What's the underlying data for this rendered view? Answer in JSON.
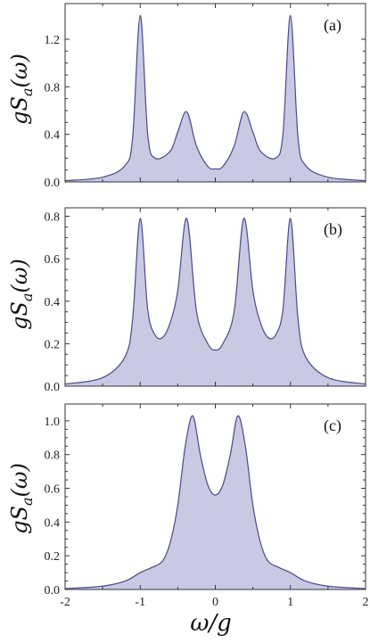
{
  "chart_data": [
    {
      "type": "area",
      "panel_label": "(a)",
      "ylabel": "gS_a(ω)",
      "xlabel": "",
      "xlim": [
        -2,
        2
      ],
      "ylim": [
        0,
        1.5
      ],
      "yticks": [
        "0.0",
        "0.4",
        "0.8",
        "1.2"
      ],
      "ytick_values": [
        0,
        0.4,
        0.8,
        1.2
      ],
      "peaks": [
        {
          "x": -1.0,
          "y": 1.4
        },
        {
          "x": -0.38,
          "y": 0.59
        },
        {
          "x": 0.38,
          "y": 0.59
        },
        {
          "x": 1.0,
          "y": 1.4
        }
      ],
      "baseline_at_center": 0.11,
      "x": [
        -2,
        -1.5,
        -1.2,
        -1.1,
        -1.0,
        -0.9,
        -0.8,
        -0.6,
        -0.5,
        -0.38,
        -0.25,
        -0.1,
        0,
        0.1,
        0.25,
        0.38,
        0.5,
        0.6,
        0.8,
        0.9,
        1.0,
        1.1,
        1.2,
        1.5,
        2
      ],
      "y": [
        0.01,
        0.04,
        0.14,
        0.38,
        1.4,
        0.4,
        0.2,
        0.26,
        0.42,
        0.59,
        0.3,
        0.13,
        0.11,
        0.13,
        0.3,
        0.59,
        0.42,
        0.26,
        0.2,
        0.4,
        1.4,
        0.38,
        0.14,
        0.04,
        0.01
      ]
    },
    {
      "type": "area",
      "panel_label": "(b)",
      "ylabel": "gS_a(ω)",
      "xlabel": "",
      "xlim": [
        -2,
        2
      ],
      "ylim": [
        0,
        0.84
      ],
      "yticks": [
        "0.0",
        "0.2",
        "0.4",
        "0.6",
        "0.8"
      ],
      "ytick_values": [
        0,
        0.2,
        0.4,
        0.6,
        0.8
      ],
      "peaks": [
        {
          "x": -1.0,
          "y": 0.79
        },
        {
          "x": -0.38,
          "y": 0.79
        },
        {
          "x": 0.38,
          "y": 0.79
        },
        {
          "x": 1.0,
          "y": 0.79
        }
      ],
      "x": [
        -2,
        -1.5,
        -1.2,
        -1.1,
        -1.0,
        -0.9,
        -0.8,
        -0.7,
        -0.6,
        -0.5,
        -0.38,
        -0.25,
        -0.1,
        0,
        0.1,
        0.25,
        0.38,
        0.5,
        0.6,
        0.7,
        0.8,
        0.9,
        1.0,
        1.1,
        1.2,
        1.5,
        2
      ],
      "y": [
        0.01,
        0.04,
        0.14,
        0.32,
        0.79,
        0.36,
        0.24,
        0.23,
        0.3,
        0.45,
        0.79,
        0.35,
        0.2,
        0.17,
        0.2,
        0.35,
        0.79,
        0.45,
        0.3,
        0.23,
        0.24,
        0.36,
        0.79,
        0.32,
        0.14,
        0.04,
        0.01
      ]
    },
    {
      "type": "area",
      "panel_label": "(c)",
      "ylabel": "gS_a(ω)",
      "xlabel": "ω/g",
      "xlim": [
        -2,
        2
      ],
      "ylim": [
        0,
        1.1
      ],
      "yticks": [
        "0.0",
        "0.2",
        "0.4",
        "0.6",
        "0.8",
        "1.0"
      ],
      "ytick_values": [
        0,
        0.2,
        0.4,
        0.6,
        0.8,
        1.0
      ],
      "xticks": [
        "-2",
        "-1",
        "0",
        "1",
        "2"
      ],
      "xtick_values": [
        -2,
        -1,
        0,
        1,
        2
      ],
      "peaks": [
        {
          "x": -0.3,
          "y": 1.03
        },
        {
          "x": 0.3,
          "y": 1.03
        }
      ],
      "x": [
        -2,
        -1.5,
        -1.2,
        -1.0,
        -0.85,
        -0.7,
        -0.6,
        -0.5,
        -0.4,
        -0.3,
        -0.2,
        -0.1,
        0,
        0.1,
        0.2,
        0.3,
        0.4,
        0.5,
        0.6,
        0.7,
        0.85,
        1.0,
        1.2,
        1.5,
        2
      ],
      "y": [
        0.005,
        0.02,
        0.05,
        0.1,
        0.13,
        0.17,
        0.28,
        0.5,
        0.85,
        1.03,
        0.8,
        0.62,
        0.56,
        0.62,
        0.8,
        1.03,
        0.85,
        0.5,
        0.28,
        0.17,
        0.13,
        0.1,
        0.05,
        0.02,
        0.005
      ]
    }
  ],
  "colors": {
    "fill": "#c9c9e3",
    "line": "#4a4a8c",
    "frame": "#333333"
  }
}
